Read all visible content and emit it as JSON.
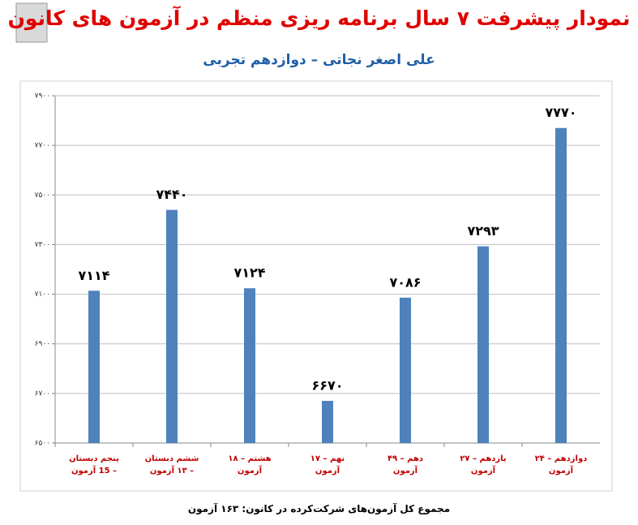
{
  "chart_data": {
    "type": "bar",
    "title": "نمودار پیشرفت ۷ سال برنامه ریزی منظم در آزمون های کانون",
    "subtitle": "علی اصغر نجاتی – دوازدهم تجربی",
    "footer": "مجموع کل آزمون‌های شرکت‌کرده در کانون: ۱۶۳ آزمون",
    "categories": [
      "پنجم دبستان – 15 آزمون",
      "ششم دبستان – ۱۳ آزمون",
      "هشتم – ۱۸ آزمون",
      "نهم – ۱۷ آزمون",
      "دهم – ۴۹ آزمون",
      "یازدهم – ۲۷ آزمون",
      "دوازدهم – ۲۴ آزمون"
    ],
    "values": [
      7114,
      7440,
      7124,
      6670,
      7086,
      7293,
      7770
    ],
    "value_labels": [
      "۷۱۱۴",
      "۷۴۴۰",
      "۷۱۲۴",
      "۶۶۷۰",
      "۷۰۸۶",
      "۷۲۹۳",
      "۷۷۷۰"
    ],
    "color": "#4f81bd",
    "ylim": [
      6500,
      7900
    ],
    "yticks": [
      {
        "value": 6500,
        "label": "۶۵۰۰"
      },
      {
        "value": 6700,
        "label": "۶۷۰۰"
      },
      {
        "value": 6900,
        "label": "۶۹۰۰"
      },
      {
        "value": 7100,
        "label": "۷۱۰۰"
      },
      {
        "value": 7300,
        "label": "۷۳۰۰"
      },
      {
        "value": 7500,
        "label": "۷۵۰۰"
      },
      {
        "value": 7700,
        "label": "۷۷۰۰"
      },
      {
        "value": 7900,
        "label": "۷۹۰۰"
      }
    ],
    "grid": true
  }
}
